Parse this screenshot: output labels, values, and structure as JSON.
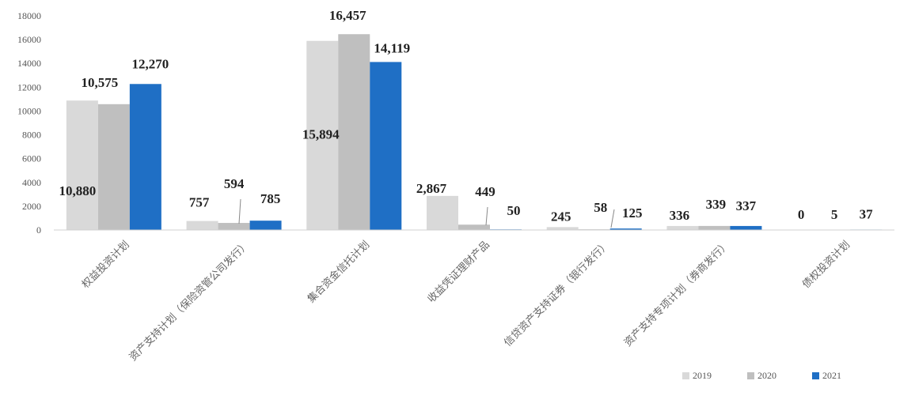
{
  "chart_data": {
    "type": "bar",
    "categories": [
      "权益投资计划",
      "资产支持计划（保险资管公司发行）",
      "集合资金信托计划",
      "收益凭证理财产品",
      "信贷资产支持证券（银行发行）",
      "资产支持专项计划（券商发行）",
      "债权投资计划"
    ],
    "series": [
      {
        "name": "2019",
        "color": "#d9d9d9",
        "values": [
          10880,
          757,
          15894,
          2867,
          245,
          336,
          0
        ]
      },
      {
        "name": "2020",
        "color": "#bfbfbf",
        "values": [
          10575,
          594,
          16457,
          449,
          58,
          339,
          5
        ]
      },
      {
        "name": "2021",
        "color": "#1f6fc5",
        "values": [
          12270,
          785,
          14119,
          50,
          125,
          337,
          37
        ]
      }
    ],
    "data_labels": [
      [
        "10,880",
        "757",
        "15,894",
        "2,867",
        "245",
        "336",
        "0"
      ],
      [
        "10,575",
        "594",
        "16,457",
        "449",
        "58",
        "339",
        "5"
      ],
      [
        "12,270",
        "785",
        "14,119",
        "50",
        "125",
        "337",
        "37"
      ]
    ],
    "y_ticks": [
      0,
      2000,
      4000,
      6000,
      8000,
      10000,
      12000,
      14000,
      16000,
      18000
    ],
    "ylim": [
      0,
      18000
    ],
    "grid": false,
    "legend_position": "bottom-right",
    "title": "",
    "xlabel": "",
    "ylabel": ""
  }
}
